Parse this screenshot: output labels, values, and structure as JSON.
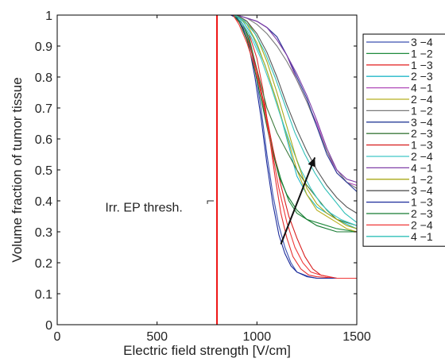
{
  "chart_data": {
    "type": "line",
    "xlabel": "Electric field strength [V/cm]",
    "ylabel": "Volume fraction of tumor tissue",
    "xlim": [
      0,
      1500
    ],
    "ylim": [
      0,
      1
    ],
    "x_ticks": [
      0,
      500,
      1000,
      1500
    ],
    "x_tick_labels": [
      "0",
      "500",
      "1000",
      "1500"
    ],
    "y_ticks": [
      0,
      0.1,
      0.2,
      0.3,
      0.4,
      0.5,
      0.6,
      0.7,
      0.8,
      0.9,
      1
    ],
    "y_tick_labels": [
      "0",
      "0.1",
      "0.2",
      "0.3",
      "0.4",
      "0.5",
      "0.6",
      "0.7",
      "0.8",
      "0.9",
      "1"
    ],
    "grid": false,
    "legend_position": "outside-right",
    "threshold": {
      "x": 800,
      "label": "Irr. EP thresh.",
      "color": "#ee1111"
    },
    "arrow": {
      "from": [
        1120,
        0.26
      ],
      "to": [
        1290,
        0.54
      ],
      "color": "#111111"
    },
    "series": [
      {
        "name": "3 −4",
        "color": "#3a4fb0",
        "points": [
          [
            0,
            1
          ],
          [
            870,
            1
          ],
          [
            900,
            0.99
          ],
          [
            930,
            0.97
          ],
          [
            960,
            0.92
          ],
          [
            990,
            0.83
          ],
          [
            1020,
            0.7
          ],
          [
            1050,
            0.55
          ],
          [
            1080,
            0.42
          ],
          [
            1110,
            0.32
          ],
          [
            1140,
            0.25
          ],
          [
            1170,
            0.2
          ],
          [
            1200,
            0.17
          ],
          [
            1250,
            0.155
          ],
          [
            1300,
            0.15
          ],
          [
            1500,
            0.15
          ]
        ]
      },
      {
        "name": "1 −2",
        "color": "#1f8a3c",
        "points": [
          [
            0,
            1
          ],
          [
            880,
            1
          ],
          [
            920,
            0.98
          ],
          [
            960,
            0.93
          ],
          [
            1000,
            0.82
          ],
          [
            1040,
            0.68
          ],
          [
            1080,
            0.56
          ],
          [
            1120,
            0.47
          ],
          [
            1160,
            0.4
          ],
          [
            1200,
            0.36
          ],
          [
            1250,
            0.34
          ],
          [
            1300,
            0.33
          ],
          [
            1350,
            0.32
          ],
          [
            1400,
            0.31
          ],
          [
            1500,
            0.3
          ]
        ]
      },
      {
        "name": "1 −3",
        "color": "#e53030",
        "points": [
          [
            0,
            1
          ],
          [
            880,
            1
          ],
          [
            920,
            0.98
          ],
          [
            960,
            0.94
          ],
          [
            1000,
            0.86
          ],
          [
            1030,
            0.76
          ],
          [
            1060,
            0.62
          ],
          [
            1090,
            0.48
          ],
          [
            1120,
            0.36
          ],
          [
            1150,
            0.28
          ],
          [
            1180,
            0.22
          ],
          [
            1220,
            0.18
          ],
          [
            1260,
            0.16
          ],
          [
            1300,
            0.155
          ],
          [
            1400,
            0.15
          ],
          [
            1500,
            0.15
          ]
        ]
      },
      {
        "name": "2 −3",
        "color": "#22b8c8",
        "points": [
          [
            0,
            1
          ],
          [
            890,
            1
          ],
          [
            930,
            0.98
          ],
          [
            980,
            0.93
          ],
          [
            1040,
            0.84
          ],
          [
            1100,
            0.72
          ],
          [
            1150,
            0.6
          ],
          [
            1200,
            0.48
          ],
          [
            1250,
            0.42
          ],
          [
            1300,
            0.38
          ],
          [
            1400,
            0.34
          ],
          [
            1500,
            0.31
          ]
        ]
      },
      {
        "name": "4 −1",
        "color": "#b04ab8",
        "points": [
          [
            0,
            1
          ],
          [
            900,
            1
          ],
          [
            950,
            0.99
          ],
          [
            1000,
            0.98
          ],
          [
            1050,
            0.96
          ],
          [
            1100,
            0.93
          ],
          [
            1150,
            0.87
          ],
          [
            1200,
            0.79
          ],
          [
            1250,
            0.72
          ],
          [
            1300,
            0.65
          ],
          [
            1350,
            0.56
          ],
          [
            1400,
            0.49
          ],
          [
            1450,
            0.46
          ],
          [
            1500,
            0.45
          ]
        ]
      },
      {
        "name": "2 −4",
        "color": "#b8b020",
        "points": [
          [
            0,
            1
          ],
          [
            900,
            1
          ],
          [
            950,
            0.97
          ],
          [
            1000,
            0.91
          ],
          [
            1050,
            0.82
          ],
          [
            1100,
            0.72
          ],
          [
            1150,
            0.61
          ],
          [
            1200,
            0.5
          ],
          [
            1250,
            0.42
          ],
          [
            1300,
            0.37
          ],
          [
            1350,
            0.35
          ],
          [
            1400,
            0.33
          ],
          [
            1450,
            0.31
          ],
          [
            1500,
            0.3
          ]
        ]
      },
      {
        "name": "1 −2",
        "color": "#7a7a7a",
        "points": [
          [
            0,
            1
          ],
          [
            900,
            1
          ],
          [
            950,
            0.99
          ],
          [
            1000,
            0.97
          ],
          [
            1050,
            0.94
          ],
          [
            1100,
            0.9
          ],
          [
            1150,
            0.85
          ],
          [
            1200,
            0.79
          ],
          [
            1250,
            0.72
          ],
          [
            1300,
            0.64
          ],
          [
            1350,
            0.56
          ],
          [
            1400,
            0.5
          ],
          [
            1450,
            0.46
          ],
          [
            1500,
            0.44
          ]
        ]
      },
      {
        "name": "3 −4",
        "color": "#2a3f9a",
        "points": [
          [
            0,
            1
          ],
          [
            900,
            1
          ],
          [
            950,
            0.99
          ],
          [
            1000,
            0.98
          ],
          [
            1050,
            0.96
          ],
          [
            1100,
            0.93
          ],
          [
            1150,
            0.87
          ],
          [
            1200,
            0.8
          ],
          [
            1250,
            0.73
          ],
          [
            1300,
            0.64
          ],
          [
            1350,
            0.55
          ],
          [
            1400,
            0.49
          ],
          [
            1450,
            0.46
          ],
          [
            1500,
            0.43
          ]
        ]
      },
      {
        "name": "2 −3",
        "color": "#3c7a3c",
        "points": [
          [
            0,
            1
          ],
          [
            890,
            1
          ],
          [
            930,
            0.97
          ],
          [
            970,
            0.9
          ],
          [
            1010,
            0.8
          ],
          [
            1050,
            0.7
          ],
          [
            1100,
            0.62
          ],
          [
            1150,
            0.56
          ],
          [
            1200,
            0.5
          ],
          [
            1250,
            0.45
          ],
          [
            1300,
            0.41
          ],
          [
            1350,
            0.37
          ],
          [
            1400,
            0.34
          ],
          [
            1450,
            0.33
          ],
          [
            1500,
            0.32
          ]
        ]
      },
      {
        "name": "1 −3",
        "color": "#d81e1e",
        "points": [
          [
            0,
            1
          ],
          [
            880,
            1
          ],
          [
            920,
            0.97
          ],
          [
            960,
            0.91
          ],
          [
            1000,
            0.82
          ],
          [
            1040,
            0.7
          ],
          [
            1080,
            0.57
          ],
          [
            1120,
            0.45
          ],
          [
            1160,
            0.35
          ],
          [
            1200,
            0.28
          ],
          [
            1240,
            0.22
          ],
          [
            1280,
            0.18
          ],
          [
            1320,
            0.16
          ],
          [
            1400,
            0.15
          ],
          [
            1500,
            0.15
          ]
        ]
      },
      {
        "name": "2 −4",
        "color": "#40c8c8",
        "points": [
          [
            0,
            1
          ],
          [
            880,
            1
          ],
          [
            920,
            0.98
          ],
          [
            970,
            0.93
          ],
          [
            1020,
            0.86
          ],
          [
            1070,
            0.77
          ],
          [
            1120,
            0.67
          ],
          [
            1170,
            0.58
          ],
          [
            1220,
            0.5
          ],
          [
            1270,
            0.44
          ],
          [
            1320,
            0.39
          ],
          [
            1370,
            0.36
          ],
          [
            1420,
            0.34
          ],
          [
            1500,
            0.32
          ]
        ]
      },
      {
        "name": "4 −1",
        "color": "#8040a8",
        "points": [
          [
            0,
            1
          ],
          [
            900,
            1
          ],
          [
            950,
            0.99
          ],
          [
            1000,
            0.98
          ],
          [
            1050,
            0.96
          ],
          [
            1100,
            0.92
          ],
          [
            1150,
            0.87
          ],
          [
            1200,
            0.81
          ],
          [
            1250,
            0.74
          ],
          [
            1300,
            0.66
          ],
          [
            1350,
            0.57
          ],
          [
            1400,
            0.5
          ],
          [
            1450,
            0.47
          ],
          [
            1500,
            0.46
          ]
        ]
      },
      {
        "name": "1 −2",
        "color": "#a8a818",
        "points": [
          [
            0,
            1
          ],
          [
            900,
            1
          ],
          [
            950,
            0.98
          ],
          [
            1000,
            0.93
          ],
          [
            1050,
            0.85
          ],
          [
            1100,
            0.75
          ],
          [
            1150,
            0.64
          ],
          [
            1200,
            0.53
          ],
          [
            1250,
            0.44
          ],
          [
            1300,
            0.39
          ],
          [
            1350,
            0.36
          ],
          [
            1400,
            0.34
          ],
          [
            1450,
            0.32
          ],
          [
            1500,
            0.31
          ]
        ]
      },
      {
        "name": "3 −4",
        "color": "#555555",
        "points": [
          [
            0,
            1
          ],
          [
            900,
            1
          ],
          [
            950,
            0.98
          ],
          [
            1000,
            0.94
          ],
          [
            1050,
            0.88
          ],
          [
            1100,
            0.8
          ],
          [
            1150,
            0.71
          ],
          [
            1200,
            0.63
          ],
          [
            1250,
            0.56
          ],
          [
            1300,
            0.5
          ],
          [
            1350,
            0.45
          ],
          [
            1400,
            0.41
          ],
          [
            1450,
            0.38
          ],
          [
            1500,
            0.36
          ]
        ]
      },
      {
        "name": "1 −3",
        "color": "#1a2a9a",
        "points": [
          [
            0,
            1
          ],
          [
            870,
            1
          ],
          [
            900,
            0.99
          ],
          [
            930,
            0.96
          ],
          [
            960,
            0.9
          ],
          [
            990,
            0.8
          ],
          [
            1020,
            0.67
          ],
          [
            1050,
            0.52
          ],
          [
            1080,
            0.39
          ],
          [
            1110,
            0.29
          ],
          [
            1140,
            0.23
          ],
          [
            1170,
            0.19
          ],
          [
            1200,
            0.17
          ],
          [
            1260,
            0.155
          ],
          [
            1300,
            0.15
          ],
          [
            1500,
            0.15
          ]
        ]
      },
      {
        "name": "2 −3",
        "color": "#157a30",
        "points": [
          [
            0,
            1
          ],
          [
            880,
            1
          ],
          [
            910,
            0.98
          ],
          [
            950,
            0.92
          ],
          [
            990,
            0.82
          ],
          [
            1030,
            0.7
          ],
          [
            1070,
            0.58
          ],
          [
            1110,
            0.48
          ],
          [
            1150,
            0.42
          ],
          [
            1200,
            0.37
          ],
          [
            1250,
            0.34
          ],
          [
            1300,
            0.32
          ],
          [
            1400,
            0.3
          ],
          [
            1500,
            0.3
          ]
        ]
      },
      {
        "name": "2 −4",
        "color": "#f03838",
        "points": [
          [
            0,
            1
          ],
          [
            880,
            1
          ],
          [
            910,
            0.97
          ],
          [
            950,
            0.91
          ],
          [
            990,
            0.83
          ],
          [
            1030,
            0.72
          ],
          [
            1070,
            0.58
          ],
          [
            1110,
            0.44
          ],
          [
            1150,
            0.33
          ],
          [
            1190,
            0.25
          ],
          [
            1230,
            0.2
          ],
          [
            1270,
            0.17
          ],
          [
            1320,
            0.16
          ],
          [
            1400,
            0.15
          ],
          [
            1500,
            0.15
          ]
        ]
      },
      {
        "name": "4 −1",
        "color": "#30c0b8",
        "points": [
          [
            0,
            1
          ],
          [
            890,
            1
          ],
          [
            940,
            0.98
          ],
          [
            990,
            0.94
          ],
          [
            1040,
            0.88
          ],
          [
            1090,
            0.8
          ],
          [
            1140,
            0.71
          ],
          [
            1190,
            0.62
          ],
          [
            1240,
            0.55
          ],
          [
            1290,
            0.49
          ],
          [
            1340,
            0.44
          ],
          [
            1390,
            0.4
          ],
          [
            1440,
            0.36
          ],
          [
            1500,
            0.33
          ]
        ]
      }
    ]
  }
}
